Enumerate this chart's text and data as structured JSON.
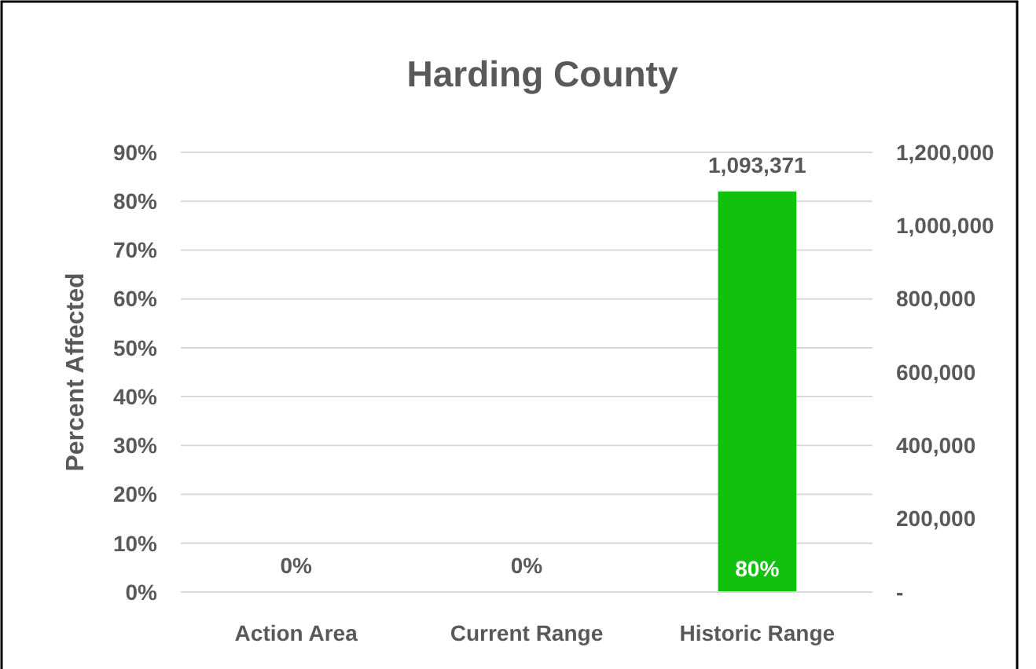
{
  "chart_data": {
    "type": "bar",
    "title": "Harding County",
    "ylabel": "Percent Affected",
    "categories": [
      "Action Area",
      "Current Range",
      "Historic Range"
    ],
    "series": [
      {
        "color": "#12c10e",
        "axis": "y2",
        "values": [
          0,
          0,
          1093371
        ],
        "value_labels": [
          null,
          null,
          "1,093,371"
        ]
      }
    ],
    "annotations": [
      "0%",
      "0%",
      "80%"
    ],
    "ylim": [
      0,
      90
    ],
    "yticks": [
      {
        "value": 0,
        "label": "0%"
      },
      {
        "value": 10,
        "label": "10%"
      },
      {
        "value": 20,
        "label": "20%"
      },
      {
        "value": 30,
        "label": "30%"
      },
      {
        "value": 40,
        "label": "40%"
      },
      {
        "value": 50,
        "label": "50%"
      },
      {
        "value": 60,
        "label": "60%"
      },
      {
        "value": 70,
        "label": "70%"
      },
      {
        "value": 80,
        "label": "80%"
      },
      {
        "value": 90,
        "label": "90%"
      }
    ],
    "y2lim": [
      0,
      1200000
    ],
    "y2ticks": [
      {
        "value": 0,
        "label": "-"
      },
      {
        "value": 200000,
        "label": "200,000"
      },
      {
        "value": 400000,
        "label": "400,000"
      },
      {
        "value": 600000,
        "label": "600,000"
      },
      {
        "value": 800000,
        "label": "800,000"
      },
      {
        "value": 1000000,
        "label": "1,000,000"
      },
      {
        "value": 1200000,
        "label": "1,200,000"
      }
    ],
    "grid": "y"
  }
}
